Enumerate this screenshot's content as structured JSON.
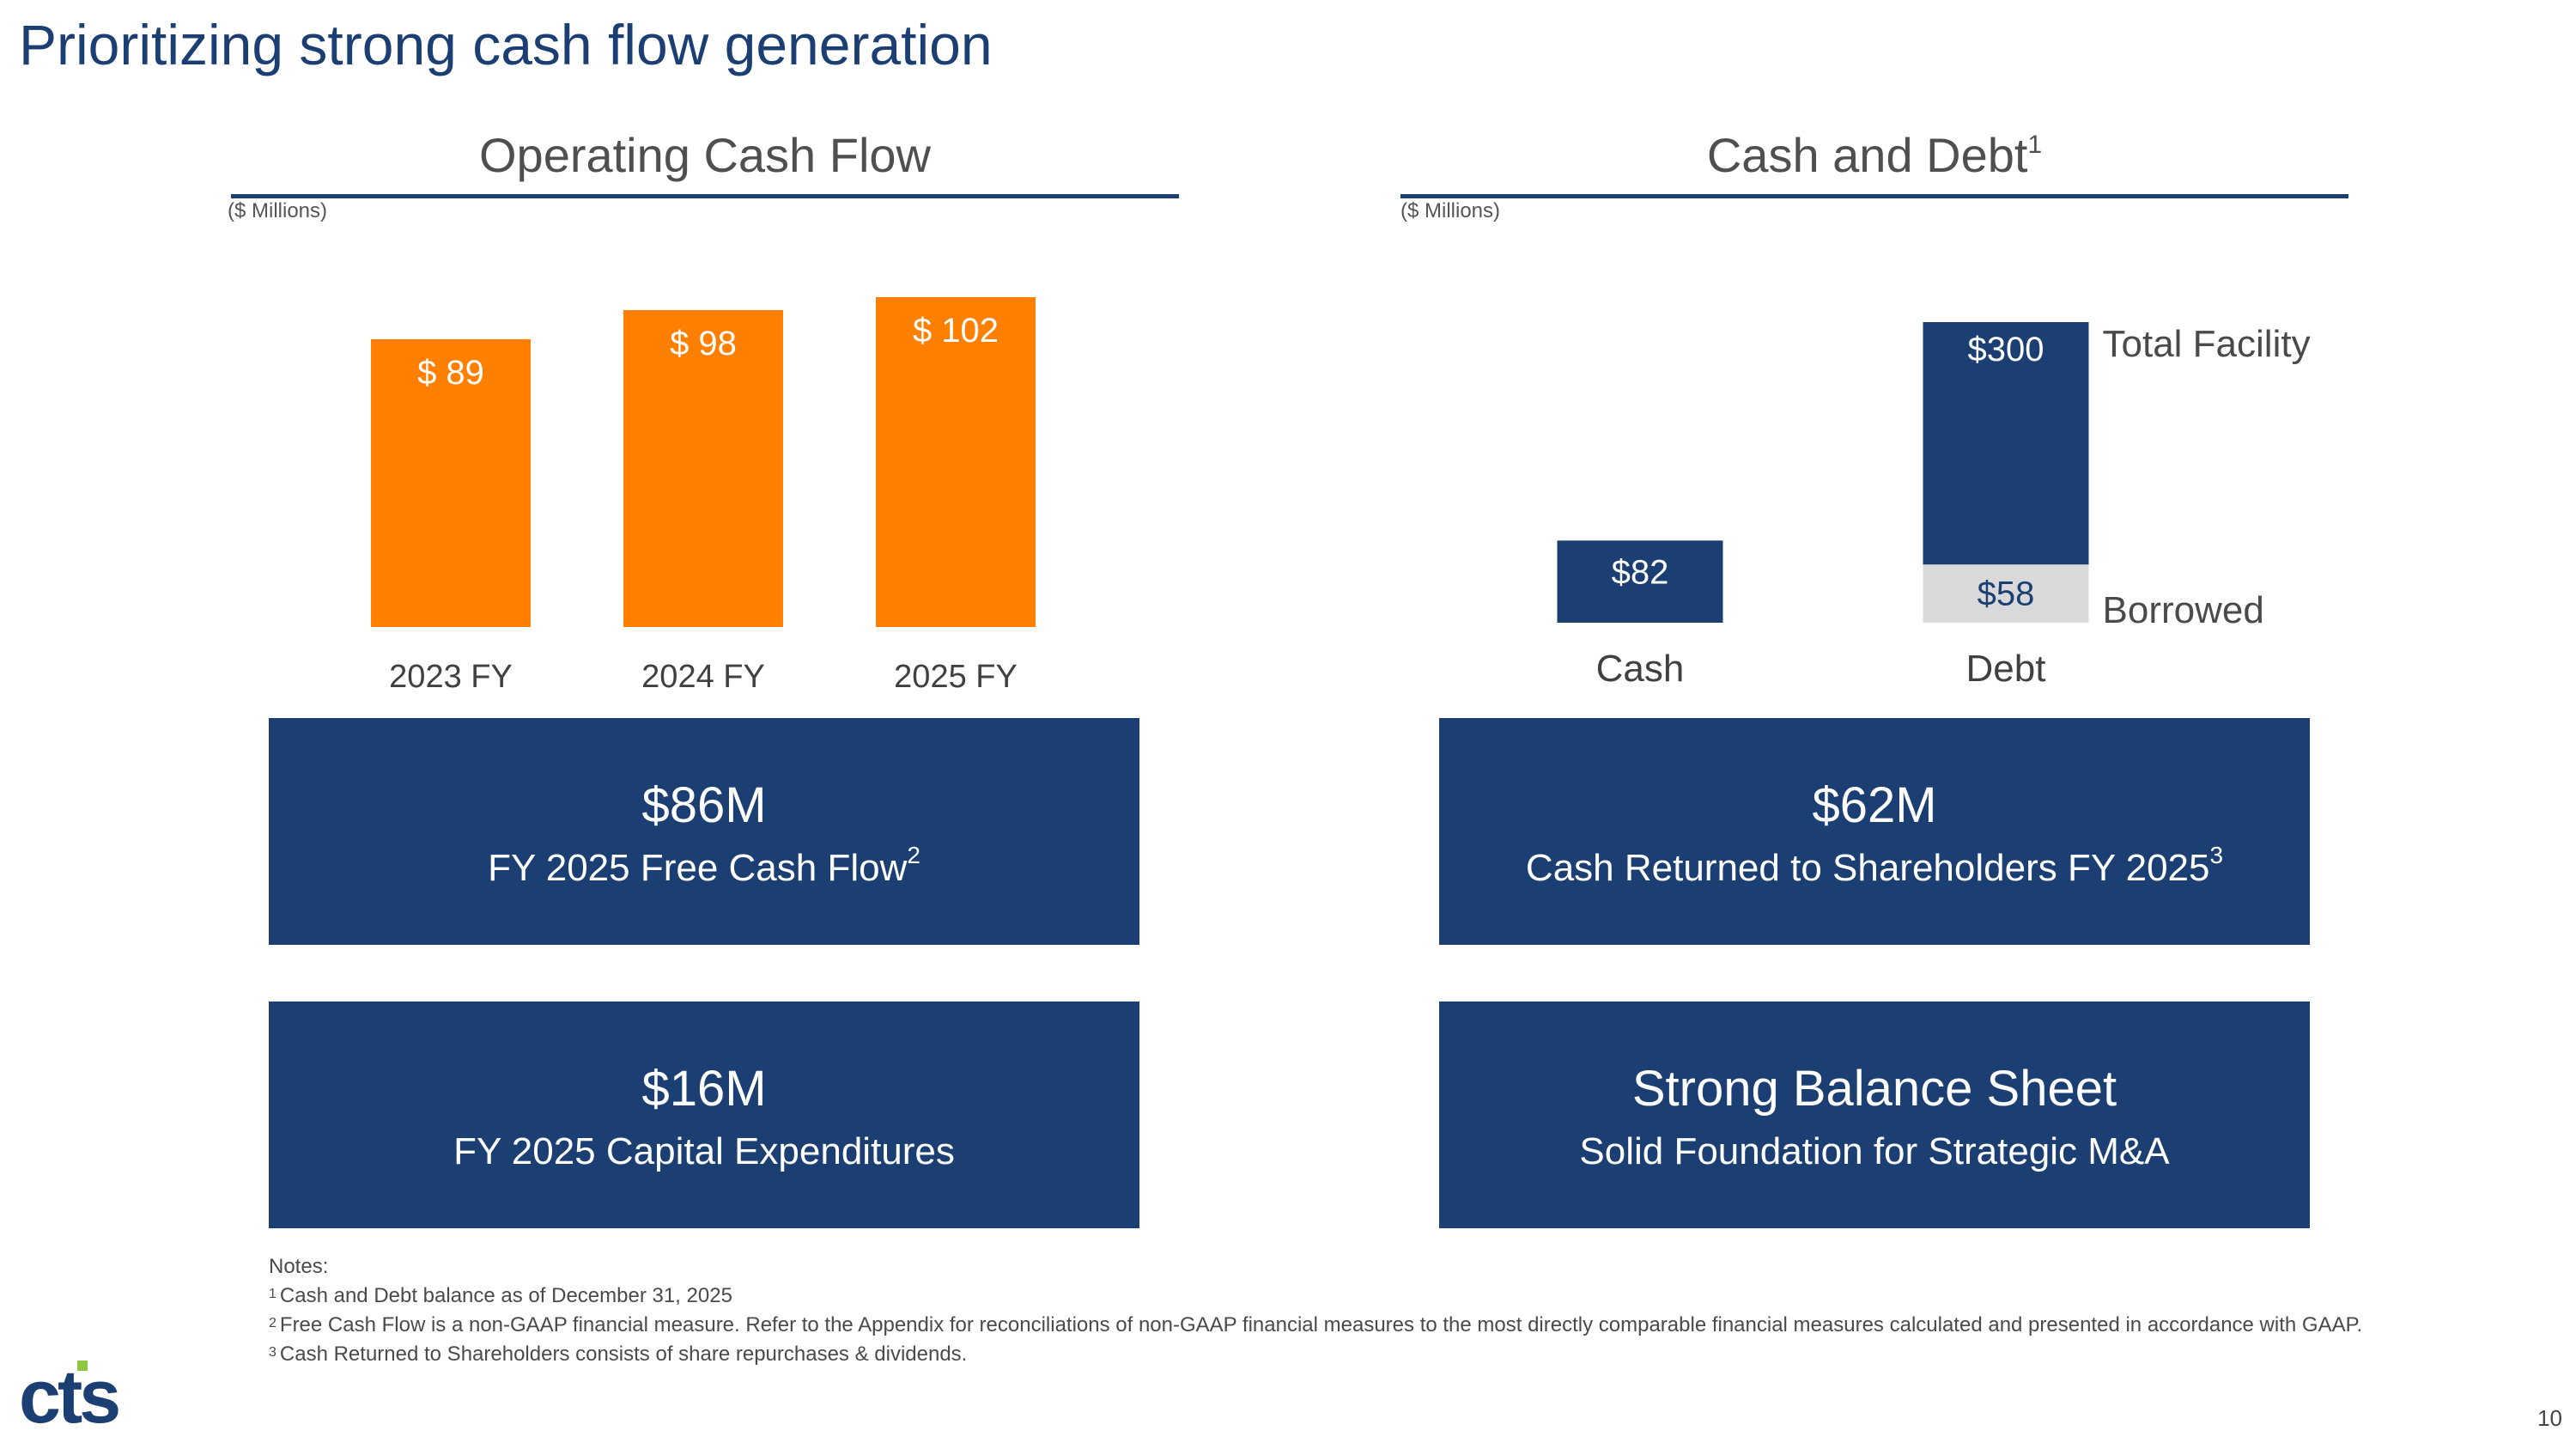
{
  "title": "Prioritizing strong cash flow generation",
  "left_section": {
    "heading": "Operating Cash Flow",
    "unit": "($ Millions)"
  },
  "right_section": {
    "heading": "Cash and Debt",
    "heading_sup": "1",
    "unit": "($ Millions)"
  },
  "chart_data": [
    {
      "type": "bar",
      "title": "Operating Cash Flow",
      "ylabel": "($ Millions)",
      "categories": [
        "2023 FY",
        "2024 FY",
        "2025 FY"
      ],
      "values": [
        89,
        98,
        102
      ],
      "labels": [
        "$ 89",
        "$ 98",
        "$ 102"
      ],
      "colors": {
        "bar": "#ff8000",
        "label": "#ffffff",
        "tick": "#404040"
      },
      "ylim": [
        0,
        102
      ],
      "grid": false
    },
    {
      "type": "bar",
      "title": "Cash and Debt",
      "ylabel": "($ Millions)",
      "categories": [
        "Cash",
        "Debt"
      ],
      "cash": {
        "value": 82,
        "label": "$82"
      },
      "debt": {
        "total": 300,
        "total_label": "$300",
        "borrowed": 58,
        "borrowed_label": "$58"
      },
      "annotations": [
        "Total Facility",
        "Borrowed"
      ],
      "colors": {
        "navy": "#1c3f73",
        "borrowed": "#d9d9d9",
        "borrowed_text": "#1c3f73",
        "label": "#ffffff",
        "tick": "#404040"
      },
      "grid": false
    }
  ],
  "boxes": [
    {
      "big": "$86M",
      "sub": "FY 2025 Free Cash Flow",
      "sup": "2"
    },
    {
      "big": "$62M",
      "sub": "Cash Returned to Shareholders FY 2025",
      "sup": "3"
    },
    {
      "big": "$16M",
      "sub": "FY 2025 Capital Expenditures",
      "sup": ""
    },
    {
      "big": "Strong Balance Sheet",
      "sub": "Solid Foundation for Strategic M&A",
      "sup": ""
    }
  ],
  "notes": {
    "heading": "Notes:",
    "items": [
      {
        "sup": "1",
        "text": "Cash and Debt balance as of December 31, 2025"
      },
      {
        "sup": "2",
        "text": "Free Cash Flow is a non-GAAP financial measure. Refer to the Appendix for reconciliations of non-GAAP financial measures to the most directly comparable financial measures calculated and presented in accordance with GAAP."
      },
      {
        "sup": "3",
        "text": "Cash Returned to Shareholders consists of share repurchases & dividends."
      }
    ]
  },
  "logo": {
    "text": "cts",
    "icon": "cts-logo-icon",
    "colors": {
      "primary": "#1c3f73",
      "accent": "#8dc63f"
    }
  },
  "page_number": "10",
  "colors": {
    "brand_navy": "#1c3f73",
    "accent_orange": "#ff8000"
  }
}
